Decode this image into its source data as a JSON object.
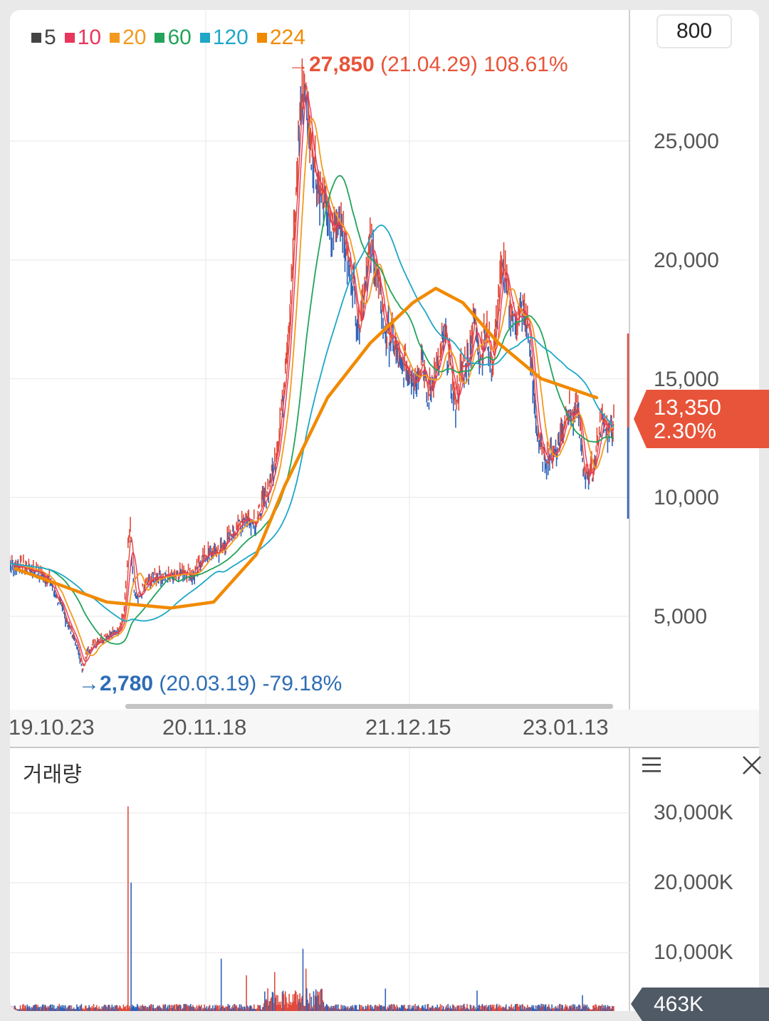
{
  "legend": [
    {
      "label": "5",
      "color": "#444444"
    },
    {
      "label": "10",
      "color": "#e8365d"
    },
    {
      "label": "20",
      "color": "#f39a1e"
    },
    {
      "label": "60",
      "color": "#22a35a"
    },
    {
      "label": "120",
      "color": "#1ea7c7"
    },
    {
      "label": "224",
      "color": "#f18a00"
    }
  ],
  "period_button": "800",
  "price_axis": {
    "labels": [
      "25,000",
      "20,000",
      "15,000",
      "10,000",
      "5,000"
    ],
    "values": [
      25000,
      20000,
      15000,
      10000,
      5000
    ]
  },
  "x_axis_labels": [
    "19.10.23",
    "20.11.18",
    "21.12.15",
    "23.01.13"
  ],
  "current_price": {
    "value": "13,350",
    "change": "2.30%",
    "color": "#e8543a"
  },
  "high_annotation": {
    "arrow": "→",
    "value": "27,850",
    "date": "(21.04.29)",
    "pct": "108.61%",
    "color": "#e8543a"
  },
  "low_annotation": {
    "arrow": "→",
    "value": "2,780",
    "date": "(20.03.19)",
    "pct": "-79.18%",
    "color": "#2e6db4"
  },
  "volume": {
    "title": "거래량",
    "axis_labels": [
      "30,000K",
      "20,000K",
      "10,000K"
    ],
    "current": "463K"
  },
  "chart_data": {
    "type": "line",
    "x_dates": [
      "19.10.23",
      "20.03.19",
      "20.11.18",
      "21.04.29",
      "21.12.15",
      "23.01.13"
    ],
    "price_close": [
      7200,
      2780,
      7500,
      27850,
      15500,
      13350
    ],
    "ylim": [
      2000,
      29500
    ],
    "series": [
      {
        "name": "5",
        "values": []
      },
      {
        "name": "224",
        "values": [
          7000,
          6200,
          5400,
          12000,
          18800,
          14200
        ]
      }
    ],
    "volume_ylim": [
      0,
      33000
    ],
    "volume_unit": "K"
  }
}
